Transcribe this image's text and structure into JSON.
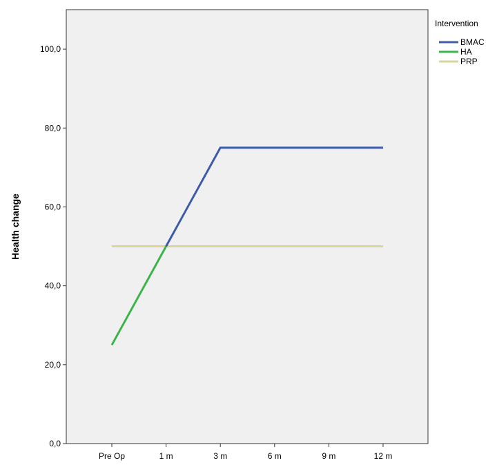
{
  "chart_data": {
    "type": "line",
    "ylabel": "Health change",
    "xlabel": "",
    "title": "",
    "categories": [
      "Pre Op",
      "1 m",
      "3 m",
      "6 m",
      "9 m",
      "12 m"
    ],
    "ylim": [
      0,
      110
    ],
    "yticks": [
      "0,0",
      "20,0",
      "40,0",
      "60,0",
      "80,0",
      "100,0"
    ],
    "ytick_values": [
      0,
      20,
      40,
      60,
      80,
      100
    ],
    "grid": false,
    "plot_background": "#f0f0f0",
    "legend": {
      "title": "Intervention",
      "position": "right"
    },
    "series": [
      {
        "name": "BMAC",
        "color": "#3d5ba8",
        "x": [
          "1 m",
          "3 m",
          "6 m",
          "9 m",
          "12 m"
        ],
        "values": [
          50,
          75,
          75,
          75,
          75
        ]
      },
      {
        "name": "HA",
        "color": "#3cb44a",
        "x": [
          "Pre Op",
          "1 m"
        ],
        "values": [
          25,
          50
        ]
      },
      {
        "name": "PRP",
        "color": "#d9d59b",
        "x": [
          "Pre Op",
          "1 m",
          "3 m",
          "6 m",
          "9 m",
          "12 m"
        ],
        "values": [
          50,
          50,
          50,
          50,
          50,
          50
        ]
      }
    ]
  }
}
